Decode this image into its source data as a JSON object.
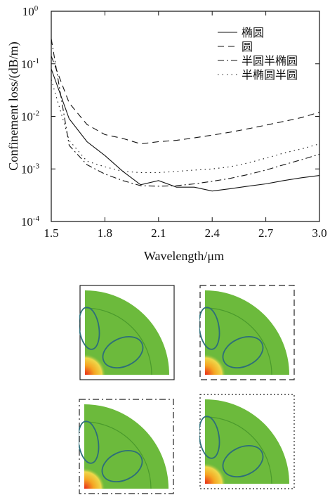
{
  "chart_data": {
    "type": "line",
    "xlabel": "Wavelength/μm",
    "ylabel": "Confinement loss/(dB/m)",
    "xlim": [
      1.5,
      3.0
    ],
    "ylim": [
      0.0001,
      1
    ],
    "yscale": "log",
    "x_ticks": [
      "1.5",
      "1.8",
      "2.1",
      "2.4",
      "2.7",
      "3.0"
    ],
    "y_ticks": [
      {
        "base": "10",
        "exp": "0"
      },
      {
        "base": "10",
        "exp": "-1"
      },
      {
        "base": "10",
        "exp": "-2"
      },
      {
        "base": "10",
        "exp": "-3"
      },
      {
        "base": "10",
        "exp": "-4"
      }
    ],
    "legend_position": "top-right",
    "series": [
      {
        "name": "椭圆",
        "style": "solid",
        "x": [
          1.5,
          1.6,
          1.7,
          1.8,
          1.9,
          2.0,
          2.1,
          2.2,
          2.3,
          2.4,
          2.5,
          2.6,
          2.7,
          2.8,
          2.9,
          3.0
        ],
        "y": [
          0.08,
          0.009,
          0.0033,
          0.0018,
          0.0009,
          0.0005,
          0.0006,
          0.00045,
          0.00045,
          0.00038,
          0.00042,
          0.00047,
          0.00052,
          0.0006,
          0.00068,
          0.00075
        ]
      },
      {
        "name": "圆",
        "style": "dashed",
        "x": [
          1.5,
          1.6,
          1.7,
          1.8,
          1.9,
          2.0,
          2.1,
          2.2,
          2.3,
          2.4,
          2.5,
          2.6,
          2.7,
          2.8,
          2.9,
          3.0
        ],
        "y": [
          0.14,
          0.018,
          0.007,
          0.0045,
          0.0038,
          0.003,
          0.0033,
          0.0035,
          0.0039,
          0.0044,
          0.005,
          0.0058,
          0.0068,
          0.008,
          0.0095,
          0.012
        ]
      },
      {
        "name": "半圆半椭圆",
        "style": "dashdot",
        "x": [
          1.5,
          1.6,
          1.7,
          1.8,
          1.9,
          2.0,
          2.1,
          2.2,
          2.3,
          2.4,
          2.5,
          2.6,
          2.7,
          2.8,
          2.9,
          3.0
        ],
        "y": [
          0.3,
          0.0028,
          0.0012,
          0.0008,
          0.0006,
          0.00048,
          0.00047,
          0.00048,
          0.00052,
          0.00058,
          0.00066,
          0.00078,
          0.00095,
          0.0012,
          0.0015,
          0.0019
        ]
      },
      {
        "name": "半椭圆半圆",
        "style": "dotted",
        "x": [
          1.5,
          1.6,
          1.7,
          1.8,
          1.9,
          2.0,
          2.1,
          2.2,
          2.3,
          2.4,
          2.5,
          2.6,
          2.7,
          2.8,
          2.9,
          3.0
        ],
        "y": [
          0.05,
          0.0035,
          0.0014,
          0.0011,
          0.0009,
          0.00085,
          0.00085,
          0.0009,
          0.00095,
          0.001,
          0.0011,
          0.0013,
          0.0016,
          0.002,
          0.0024,
          0.003
        ]
      }
    ]
  },
  "colors": {
    "fiber": "#6cba3c",
    "ring": "#4a9a2c",
    "tube": "#2d6e7a",
    "mode_core": "#e8281a",
    "mode_mid": "#f5a623",
    "mode_edge": "#eed84a"
  },
  "panels": [
    {
      "border": "solid"
    },
    {
      "border": "dashed"
    },
    {
      "border": "dashdot"
    },
    {
      "border": "dotted"
    }
  ]
}
